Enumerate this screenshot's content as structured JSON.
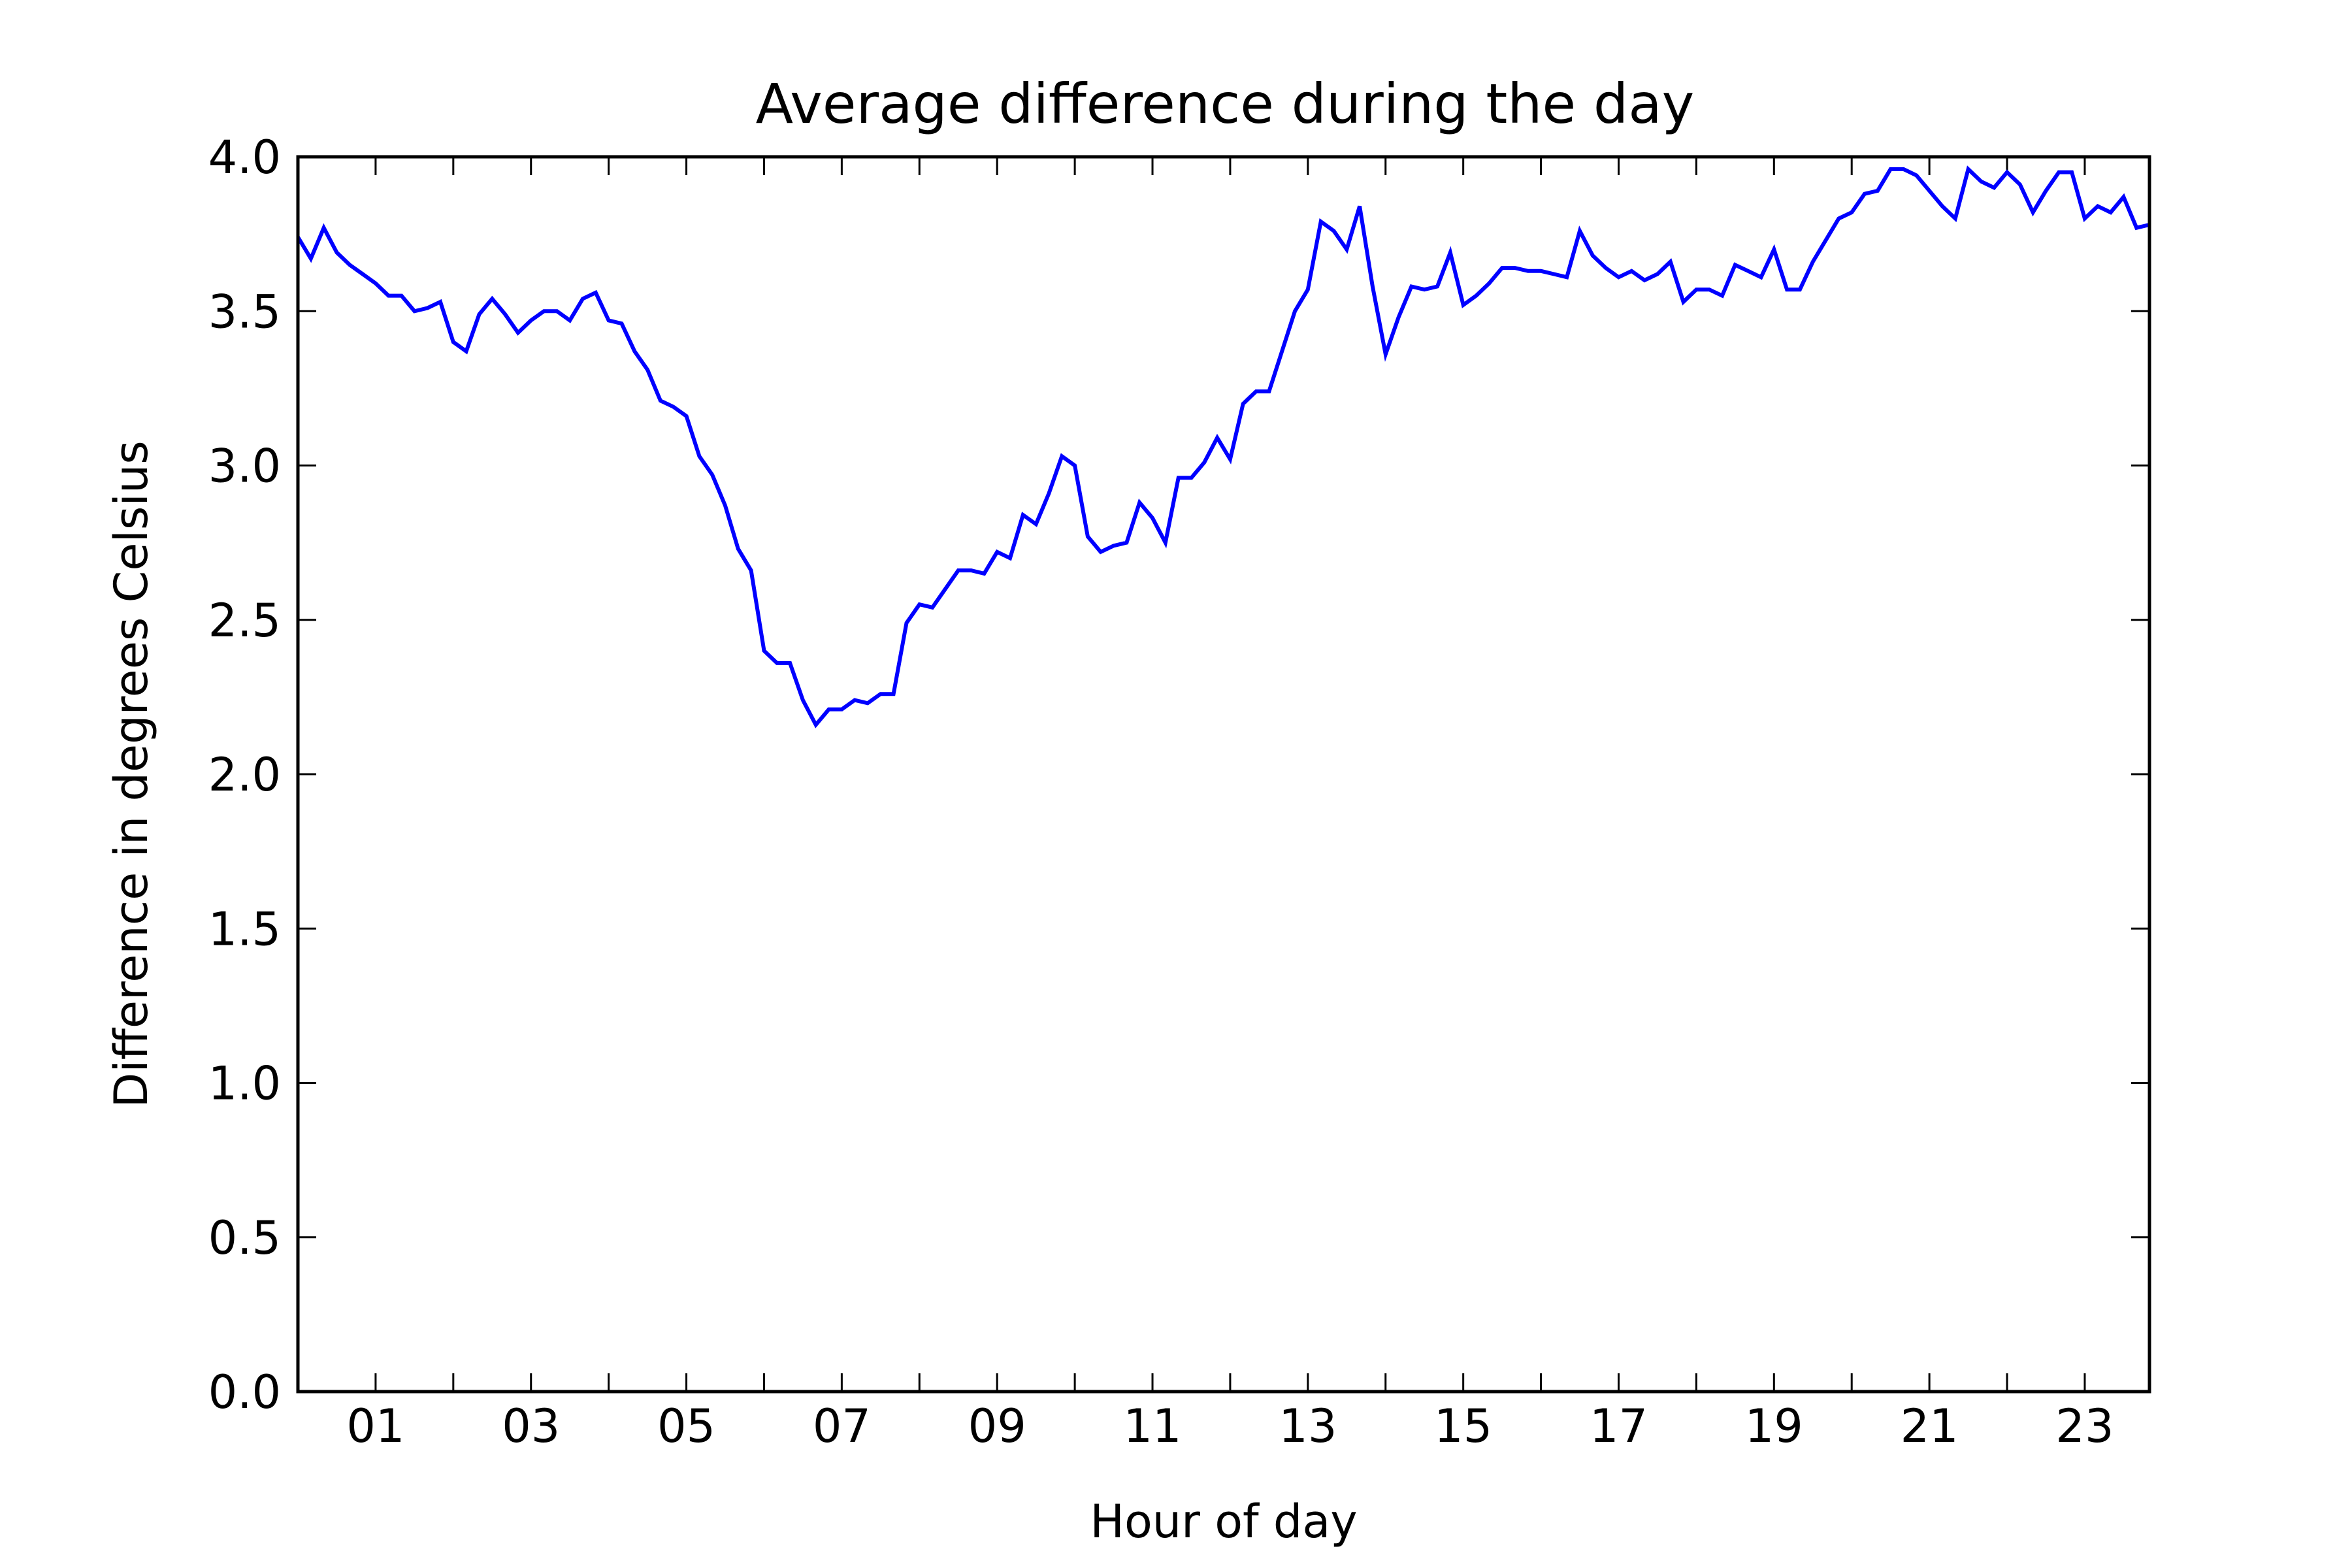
{
  "chart_data": {
    "type": "line",
    "title": "Average difference during the day",
    "xlabel": "Hour of day",
    "ylabel": "Difference in degrees Celsius",
    "xlim": [
      0,
      23.833
    ],
    "ylim": [
      0,
      4.0
    ],
    "grid": false,
    "y_ticks": [
      "0.0",
      "0.5",
      "1.0",
      "1.5",
      "2.0",
      "2.5",
      "3.0",
      "3.5",
      "4.0"
    ],
    "x_tick_labels": [
      "01",
      "03",
      "05",
      "07",
      "09",
      "11",
      "13",
      "15",
      "17",
      "19",
      "21",
      "23"
    ],
    "x_step_hours": 0.16667,
    "series": [
      {
        "color": "#0000ff",
        "x": [
          "00:00",
          "00:10",
          "00:20",
          "00:30",
          "00:40",
          "00:50",
          "01:00",
          "01:10",
          "01:20",
          "01:30",
          "01:40",
          "01:50",
          "02:00",
          "02:10",
          "02:20",
          "02:30",
          "02:40",
          "02:50",
          "03:00",
          "03:10",
          "03:20",
          "03:30",
          "03:40",
          "03:50",
          "04:00",
          "04:10",
          "04:20",
          "04:30",
          "04:40",
          "04:50",
          "05:00",
          "05:10",
          "05:20",
          "05:30",
          "05:40",
          "05:50",
          "06:00",
          "06:10",
          "06:20",
          "06:30",
          "06:40",
          "06:50",
          "07:00",
          "07:10",
          "07:20",
          "07:30",
          "07:40",
          "07:50",
          "08:00",
          "08:10",
          "08:20",
          "08:30",
          "08:40",
          "08:50",
          "09:00",
          "09:10",
          "09:20",
          "09:30",
          "09:40",
          "09:50",
          "10:00",
          "10:10",
          "10:20",
          "10:30",
          "10:40",
          "10:50",
          "11:00",
          "11:10",
          "11:20",
          "11:30",
          "11:40",
          "11:50",
          "12:00",
          "12:10",
          "12:20",
          "12:30",
          "12:40",
          "12:50",
          "13:00",
          "13:10",
          "13:20",
          "13:30",
          "13:40",
          "13:50",
          "14:00",
          "14:10",
          "14:20",
          "14:30",
          "14:40",
          "14:50",
          "15:00",
          "15:10",
          "15:20",
          "15:30",
          "15:40",
          "15:50",
          "16:00",
          "16:10",
          "16:20",
          "16:30",
          "16:40",
          "16:50",
          "17:00",
          "17:10",
          "17:20",
          "17:30",
          "17:40",
          "17:50",
          "18:00",
          "18:10",
          "18:20",
          "18:30",
          "18:40",
          "18:50",
          "19:00",
          "19:10",
          "19:20",
          "19:30",
          "19:40",
          "19:50",
          "20:00",
          "20:10",
          "20:20",
          "20:30",
          "20:40",
          "20:50",
          "21:00",
          "21:10",
          "21:20",
          "21:30",
          "21:40",
          "21:50",
          "22:00",
          "22:10",
          "22:20",
          "22:30",
          "22:40",
          "22:50",
          "23:00",
          "23:10",
          "23:20",
          "23:30",
          "23:40",
          "23:50"
        ],
        "values": [
          3.74,
          3.67,
          3.77,
          3.69,
          3.65,
          3.62,
          3.59,
          3.55,
          3.55,
          3.5,
          3.51,
          3.53,
          3.4,
          3.37,
          3.49,
          3.54,
          3.49,
          3.43,
          3.47,
          3.5,
          3.5,
          3.47,
          3.54,
          3.56,
          3.47,
          3.46,
          3.37,
          3.31,
          3.21,
          3.19,
          3.16,
          3.03,
          2.97,
          2.87,
          2.73,
          2.66,
          2.4,
          2.36,
          2.36,
          2.24,
          2.16,
          2.21,
          2.21,
          2.24,
          2.23,
          2.26,
          2.26,
          2.49,
          2.55,
          2.54,
          2.6,
          2.66,
          2.66,
          2.65,
          2.72,
          2.7,
          2.84,
          2.81,
          2.91,
          3.03,
          3.0,
          2.77,
          2.72,
          2.74,
          2.75,
          2.88,
          2.83,
          2.75,
          2.96,
          2.96,
          3.01,
          3.09,
          3.02,
          3.2,
          3.24,
          3.24,
          3.37,
          3.5,
          3.57,
          3.79,
          3.76,
          3.7,
          3.84,
          3.58,
          3.36,
          3.48,
          3.58,
          3.57,
          3.58,
          3.69,
          3.52,
          3.55,
          3.59,
          3.64,
          3.64,
          3.63,
          3.63,
          3.62,
          3.61,
          3.76,
          3.68,
          3.64,
          3.61,
          3.63,
          3.6,
          3.62,
          3.66,
          3.53,
          3.57,
          3.57,
          3.55,
          3.65,
          3.63,
          3.61,
          3.7,
          3.57,
          3.57,
          3.66,
          3.73,
          3.8,
          3.82,
          3.88,
          3.89,
          3.96,
          3.96,
          3.94,
          3.89,
          3.84,
          3.8,
          3.96,
          3.92,
          3.9,
          3.95,
          3.91,
          3.82,
          3.89,
          3.95,
          3.95,
          3.8,
          3.84,
          3.82,
          3.87,
          3.77,
          3.78
        ]
      }
    ]
  }
}
